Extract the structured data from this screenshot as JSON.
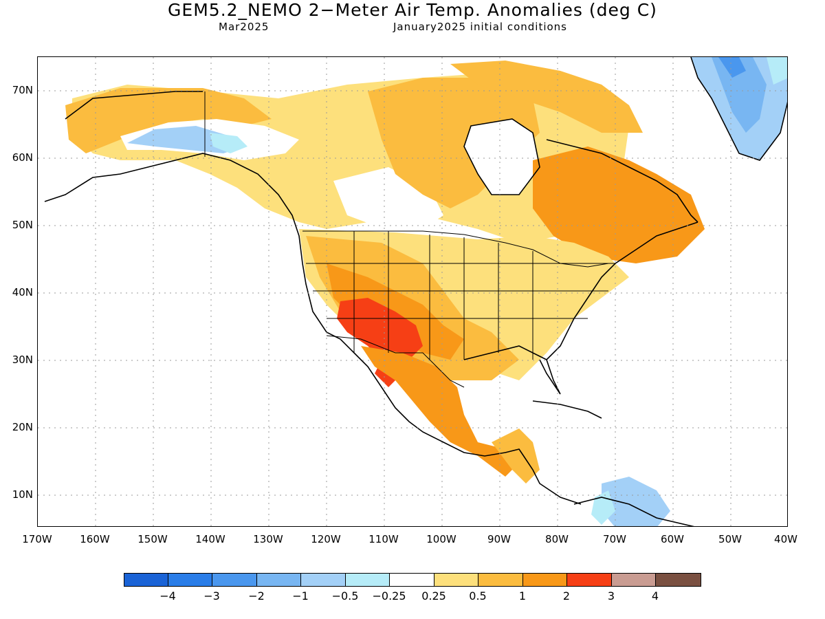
{
  "title": "GEM5.2_NEMO 2−Meter Air Temp. Anomalies (deg C)",
  "subtitle_left": "Mar2025",
  "subtitle_right": "January2025 initial conditions",
  "axes": {
    "lat_labels": [
      "70N",
      "60N",
      "50N",
      "40N",
      "30N",
      "20N",
      "10N"
    ],
    "lon_labels": [
      "170W",
      "160W",
      "150W",
      "140W",
      "130W",
      "120W",
      "110W",
      "100W",
      "90W",
      "80W",
      "70W",
      "60W",
      "50W",
      "40W"
    ]
  },
  "legend": {
    "colors": [
      "#1a63d6",
      "#2a7de8",
      "#4a97ee",
      "#78b6f2",
      "#a3d0f7",
      "#b6ecf8",
      "#ffffff",
      "#fde07c",
      "#fbbc3f",
      "#f89818",
      "#f63f15",
      "#c99c92",
      "#7a5041"
    ],
    "labels": [
      "−4",
      "−3",
      "−2",
      "−1",
      "−0.5",
      "−0.25",
      "0.25",
      "0.5",
      "1",
      "2",
      "3",
      "4"
    ]
  },
  "map_regions": [
    {
      "name": "alaska-warm",
      "category": "0.5 to 1"
    },
    {
      "name": "yukon-cool",
      "category": "-1 to -0.5"
    },
    {
      "name": "southwest-hot",
      "category": "2 to 3"
    },
    {
      "name": "mexico-warm",
      "category": "1 to 2"
    },
    {
      "name": "greenland-cool",
      "category": "-2 to -0.5"
    },
    {
      "name": "caribbean-cool",
      "category": "-1 to -0.25"
    },
    {
      "name": "quebec-warm",
      "category": "1 to 2"
    }
  ]
}
